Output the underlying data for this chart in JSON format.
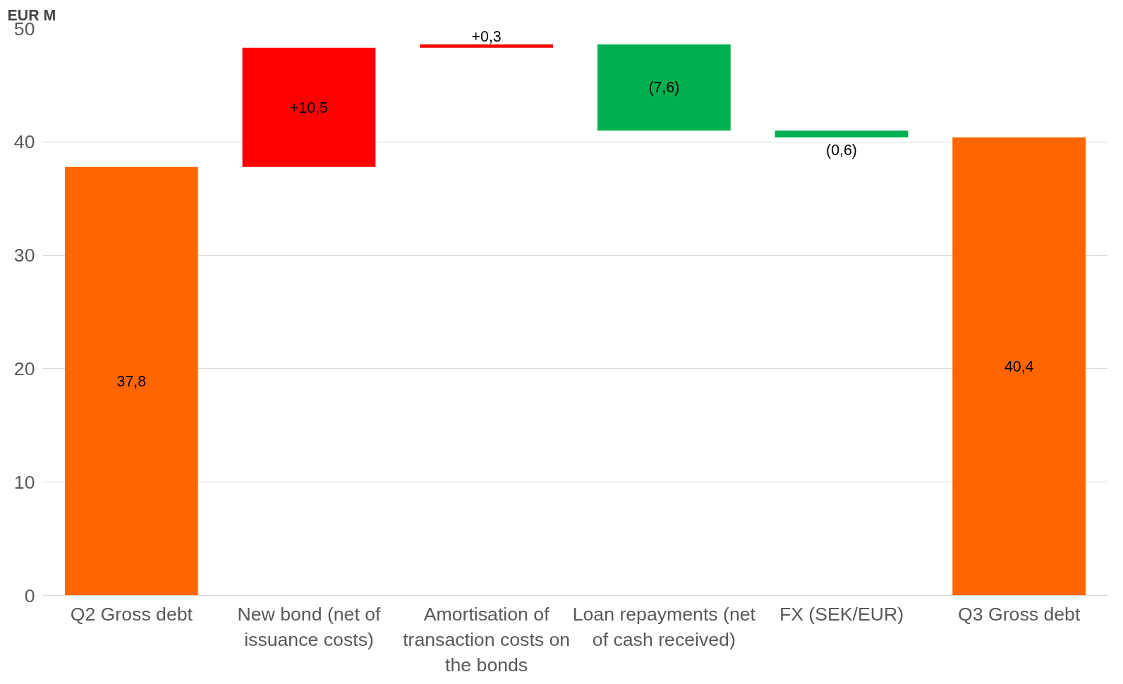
{
  "chart_data": {
    "type": "bar",
    "ylabel": "EUR M",
    "categories": [
      "Q2 Gross debt",
      "New bond (net of issuance costs)",
      "Amortisation of transaction costs on the bonds",
      "Loan repayments (net of cash received)",
      "FX (SEK/EUR)",
      "Q3 Gross debt"
    ],
    "values": [
      37.8,
      10.5,
      0.3,
      -7.6,
      -0.6,
      40.4
    ],
    "base": [
      0,
      37.8,
      48.3,
      48.6,
      41.0,
      0
    ],
    "colors": [
      "#ff6600",
      "#ff0000",
      "#ff0000",
      "#00b050",
      "#00b050",
      "#ff6600"
    ],
    "value_labels": [
      "37,8",
      "+10,5",
      "+0,3",
      "(7,6)",
      "(0,6)",
      "40,4"
    ],
    "ylim": [
      0,
      50
    ],
    "yticks": [
      0,
      10,
      20,
      30,
      40,
      50
    ],
    "grid": "y"
  }
}
